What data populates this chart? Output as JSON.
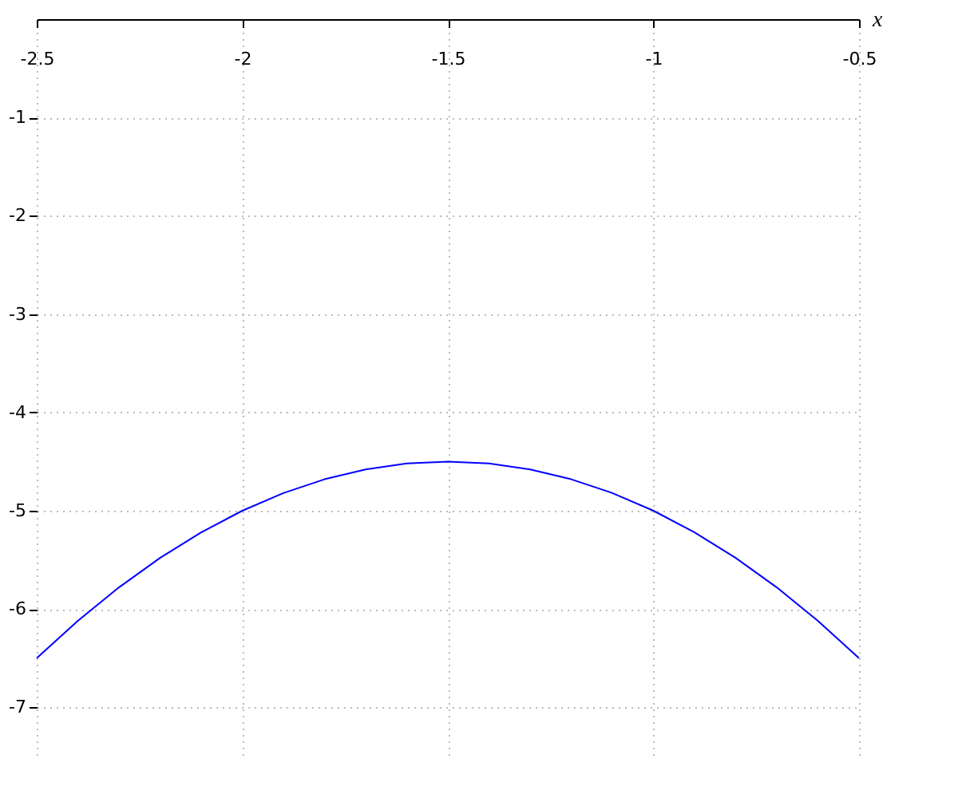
{
  "chart_data": {
    "type": "line",
    "xlabel": "x",
    "x": [
      -2.5,
      -2.4,
      -2.3,
      -2.2,
      -2.1,
      -2.0,
      -1.9,
      -1.8,
      -1.7,
      -1.6,
      -1.5,
      -1.4,
      -1.3,
      -1.2,
      -1.1,
      -1.0,
      -0.9,
      -0.8,
      -0.7,
      -0.6,
      -0.5
    ],
    "series": [
      {
        "color": "#0000ff",
        "values": [
          -6.5,
          -6.12,
          -5.78,
          -5.48,
          -5.22,
          -5.0,
          -4.82,
          -4.68,
          -4.58,
          -4.52,
          -4.5,
          -4.52,
          -4.58,
          -4.68,
          -4.82,
          -5.0,
          -5.22,
          -5.48,
          -5.78,
          -6.12,
          -6.5
        ]
      }
    ],
    "xlim": [
      -2.5,
      -0.5
    ],
    "xticks": [
      -2.5,
      -2,
      -1.5,
      -1,
      -0.5
    ],
    "ylim": [
      -7.5,
      0
    ],
    "yticks": [
      -1,
      -2,
      -3,
      -4,
      -5,
      -6,
      -7
    ],
    "grid": true,
    "marker": "none",
    "line_style": "solid"
  }
}
